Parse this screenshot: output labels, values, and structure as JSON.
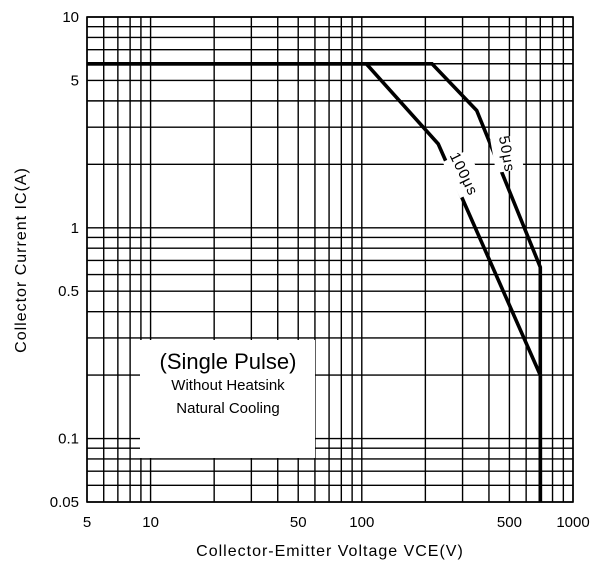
{
  "chart_data": {
    "type": "line",
    "title": "",
    "xlabel": "Collector-Emitter Voltage VCE(V)",
    "ylabel": "Collector Current IC(A)",
    "xscale": "log",
    "yscale": "log",
    "xlim": [
      5,
      1000
    ],
    "ylim": [
      0.05,
      10
    ],
    "grid": true,
    "x_ticks": [
      "5",
      "10",
      "50",
      "100",
      "500",
      "1000"
    ],
    "y_ticks": [
      "0.05",
      "0.1",
      "0.5",
      "1",
      "5",
      "10"
    ],
    "series": [
      {
        "name": "50μs",
        "points": [
          [
            5,
            6.0
          ],
          [
            215,
            6.0
          ],
          [
            350,
            3.6
          ],
          [
            700,
            0.65
          ],
          [
            700,
            0.05
          ]
        ]
      },
      {
        "name": "100μs",
        "points": [
          [
            5,
            6.0
          ],
          [
            105,
            6.0
          ],
          [
            230,
            2.5
          ],
          [
            700,
            0.2
          ],
          [
            700,
            0.05
          ]
        ]
      }
    ],
    "annotation": {
      "title": "(Single Pulse)",
      "lines": [
        "Without Heatsink",
        "Natural Cooling"
      ]
    }
  }
}
